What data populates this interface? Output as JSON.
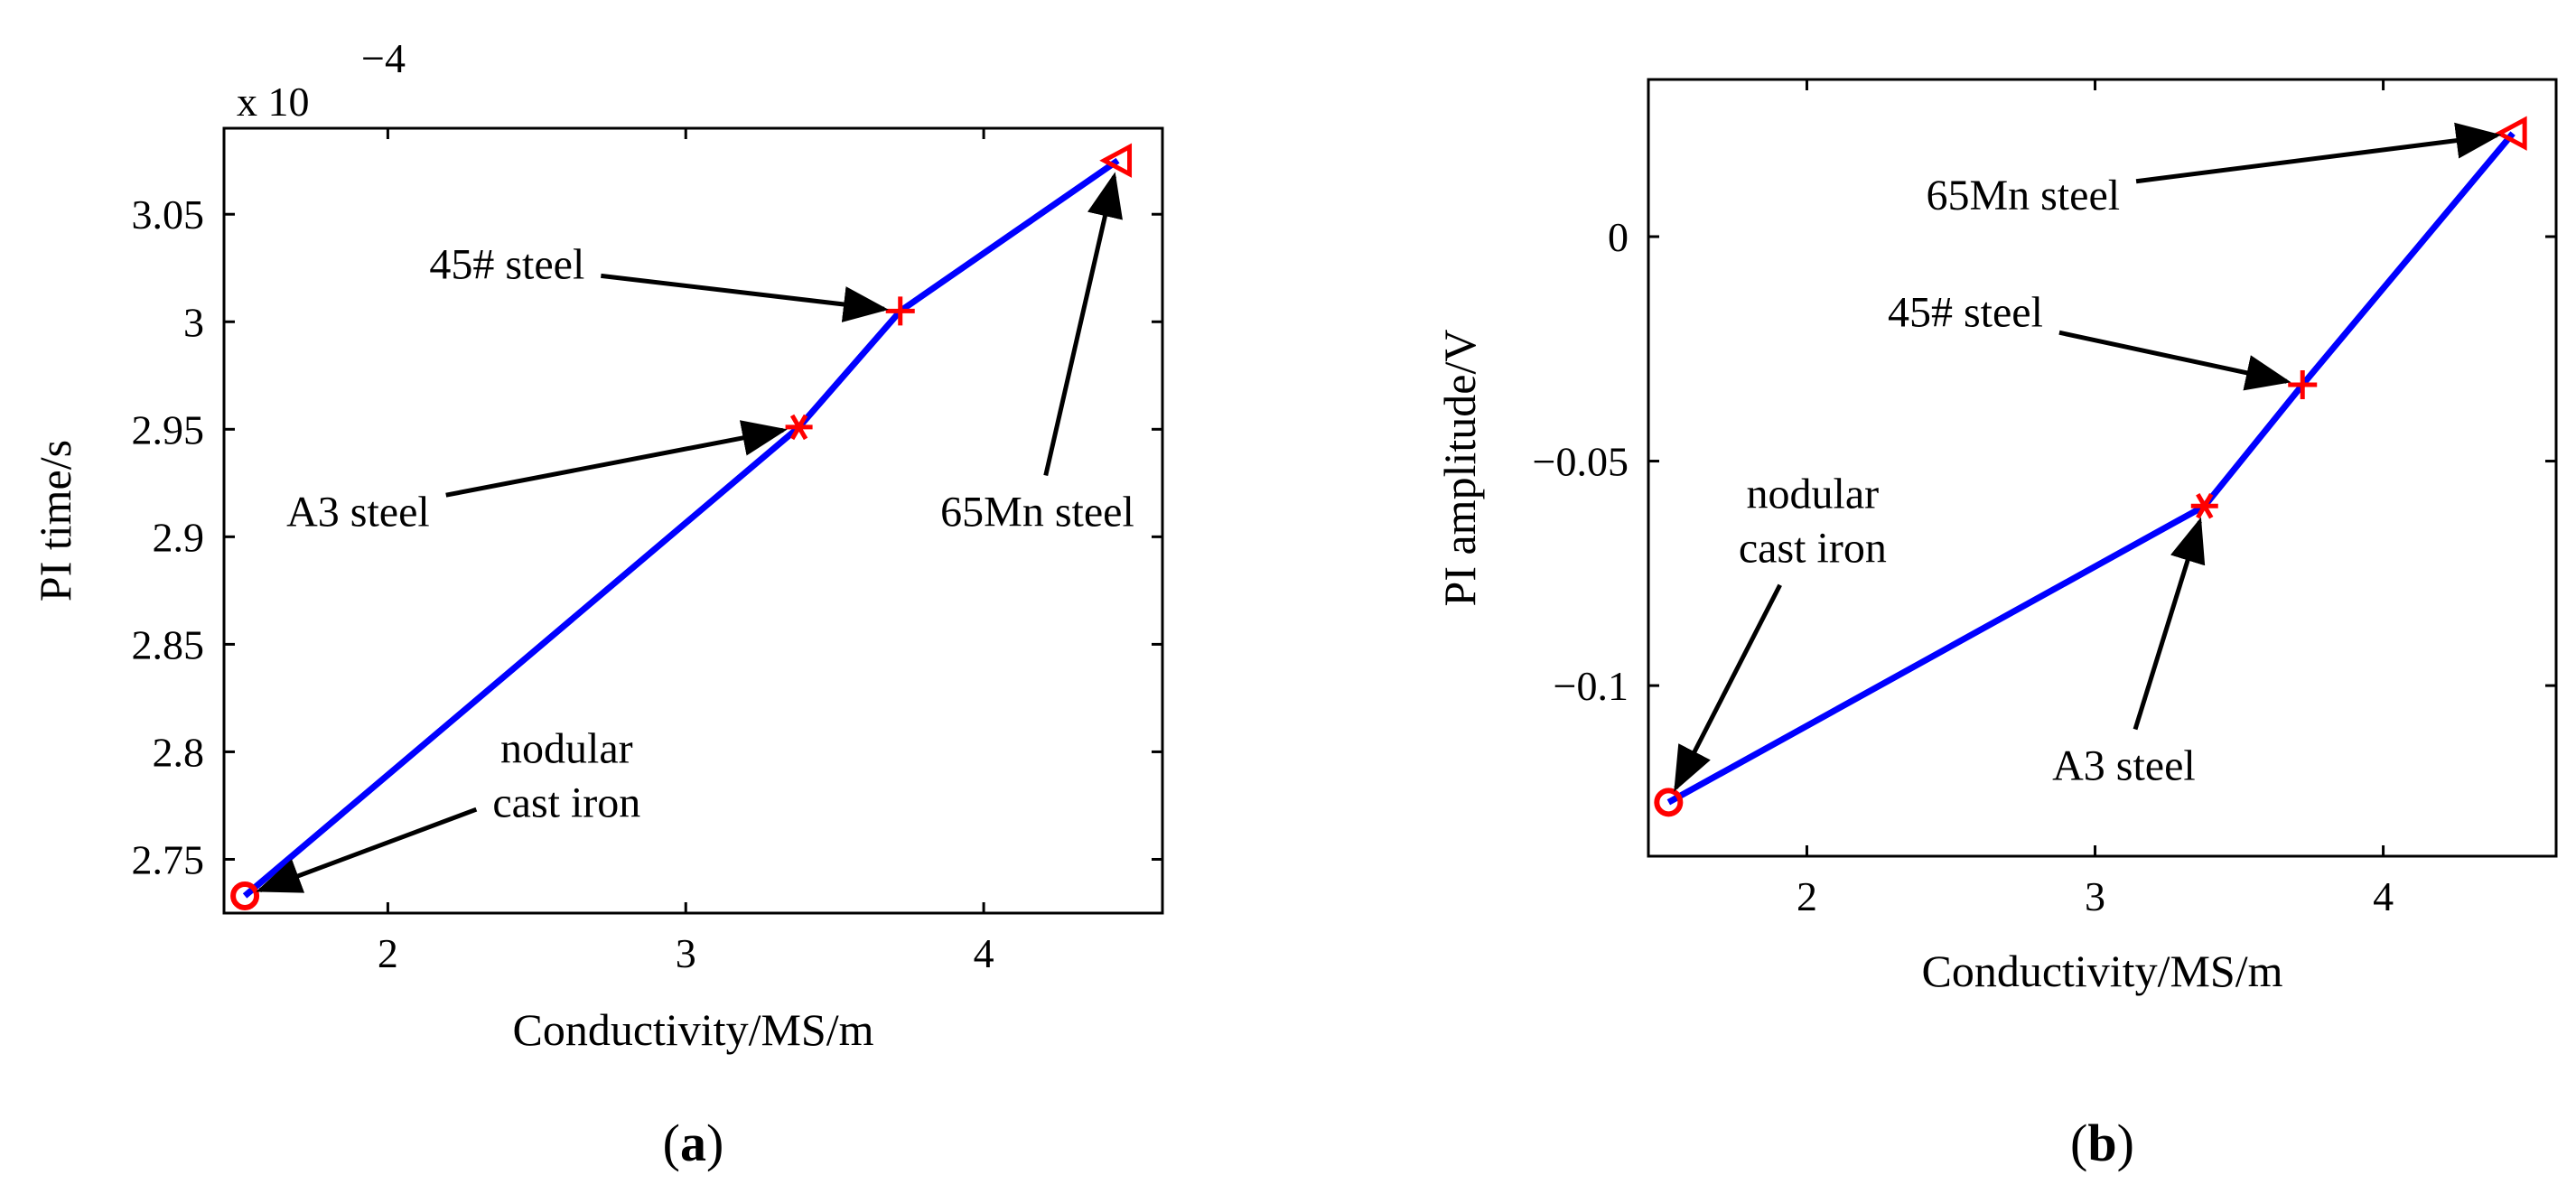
{
  "figure": {
    "panels": [
      "(a)",
      "(b)"
    ]
  },
  "chart_data": [
    {
      "type": "line",
      "panel_label": {
        "open": "(",
        "letter": "a",
        "close": ")"
      },
      "title": "",
      "xlabel": "Conductivity/MS/m",
      "ylabel": "PI time/s",
      "y_exponent_label": {
        "prefix": "x 10",
        "power": "−4"
      },
      "xlim": [
        1.45,
        4.6
      ],
      "ylim": [
        2.725,
        3.09
      ],
      "xticks": [
        2,
        3,
        4
      ],
      "xtick_labels": [
        "2",
        "3",
        "4"
      ],
      "yticks": [
        2.75,
        2.8,
        2.85,
        2.9,
        2.95,
        3.0,
        3.05
      ],
      "ytick_labels": [
        "2.75",
        "2.8",
        "2.85",
        "2.9",
        "2.95",
        "3",
        "3.05"
      ],
      "series": [
        {
          "name": "PI time",
          "color": "#0000ff",
          "x": [
            1.52,
            3.38,
            3.72,
            4.45
          ],
          "y": [
            2.733,
            2.951,
            3.005,
            3.075
          ]
        }
      ],
      "points": [
        {
          "x": 1.52,
          "y": 2.733,
          "marker": "circle",
          "color": "#ff0000"
        },
        {
          "x": 3.38,
          "y": 2.951,
          "marker": "asterisk",
          "color": "#ff0000"
        },
        {
          "x": 3.72,
          "y": 3.005,
          "marker": "plus",
          "color": "#ff0000"
        },
        {
          "x": 4.45,
          "y": 3.075,
          "marker": "triangle-left",
          "color": "#ff0000"
        }
      ],
      "annotations": [
        {
          "lines": [
            "45# steel"
          ],
          "tx": 2.4,
          "ty": 3.02,
          "anchor": "middle",
          "ax": 3.72,
          "ay": 3.005
        },
        {
          "lines": [
            "A3 steel"
          ],
          "tx": 1.9,
          "ty": 2.905,
          "anchor": "middle",
          "ax": 3.38,
          "ay": 2.951
        },
        {
          "lines": [
            "65Mn steel"
          ],
          "tx": 4.18,
          "ty": 2.905,
          "anchor": "middle",
          "ax": 4.45,
          "ay": 3.075
        },
        {
          "lines": [
            "nodular",
            "cast iron"
          ],
          "tx": 2.6,
          "ty": 2.795,
          "anchor": "middle",
          "ax": 1.52,
          "ay": 2.733
        }
      ],
      "colors": {
        "line": "#0000ff",
        "marker": "#ff0000",
        "axis": "#000000"
      }
    },
    {
      "type": "line",
      "panel_label": {
        "open": "(",
        "letter": "b",
        "close": ")"
      },
      "title": "",
      "xlabel": "Conductivity/MS/m",
      "ylabel": "PI amplitude/V",
      "xlim": [
        1.45,
        4.6
      ],
      "ylim": [
        -0.138,
        0.035
      ],
      "xticks": [
        2,
        3,
        4
      ],
      "xtick_labels": [
        "2",
        "3",
        "4"
      ],
      "yticks": [
        -0.1,
        -0.05,
        0
      ],
      "ytick_labels": [
        "−0.1",
        "−0.05",
        "0"
      ],
      "series": [
        {
          "name": "PI amplitude",
          "color": "#0000ff",
          "x": [
            1.52,
            3.38,
            3.72,
            4.45
          ],
          "y": [
            -0.126,
            -0.06,
            -0.033,
            0.023
          ]
        }
      ],
      "points": [
        {
          "x": 1.52,
          "y": -0.126,
          "marker": "circle",
          "color": "#ff0000"
        },
        {
          "x": 3.38,
          "y": -0.06,
          "marker": "asterisk",
          "color": "#ff0000"
        },
        {
          "x": 3.72,
          "y": -0.033,
          "marker": "plus",
          "color": "#ff0000"
        },
        {
          "x": 4.45,
          "y": 0.023,
          "marker": "triangle-left",
          "color": "#ff0000"
        }
      ],
      "annotations": [
        {
          "lines": [
            "65Mn steel"
          ],
          "tx": 2.75,
          "ty": 0.006,
          "anchor": "middle",
          "ax": 4.45,
          "ay": 0.023
        },
        {
          "lines": [
            "45# steel"
          ],
          "tx": 2.55,
          "ty": -0.02,
          "anchor": "middle",
          "ax": 3.72,
          "ay": -0.033
        },
        {
          "lines": [
            "nodular",
            "cast iron"
          ],
          "tx": 2.02,
          "ty": -0.0605,
          "anchor": "middle",
          "ax": 1.52,
          "ay": -0.126
        },
        {
          "lines": [
            "A3 steel"
          ],
          "tx": 3.1,
          "ty": -0.121,
          "anchor": "middle",
          "ax": 3.38,
          "ay": -0.06
        }
      ],
      "colors": {
        "line": "#0000ff",
        "marker": "#ff0000",
        "axis": "#000000"
      }
    }
  ]
}
